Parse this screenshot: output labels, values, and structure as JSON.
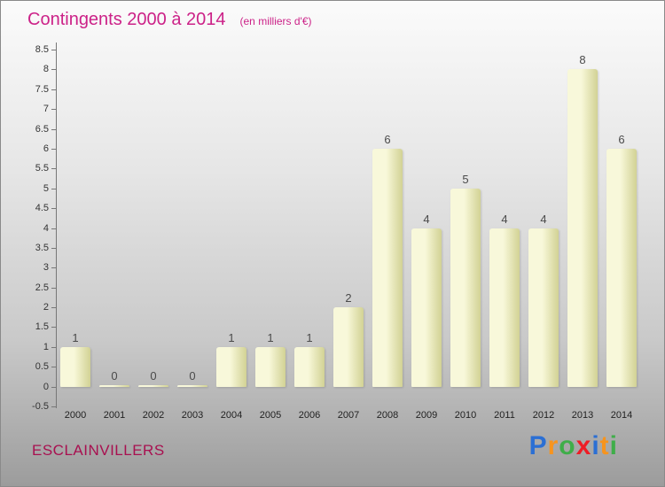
{
  "chart_data": {
    "type": "bar",
    "title": "Contingents 2000 à 2014",
    "subtitle": "(en milliers d'€)",
    "categories": [
      "2000",
      "2001",
      "2002",
      "2003",
      "2004",
      "2005",
      "2006",
      "2007",
      "2008",
      "2009",
      "2010",
      "2011",
      "2012",
      "2013",
      "2014"
    ],
    "values": [
      1,
      0,
      0,
      0,
      1,
      1,
      1,
      2,
      6,
      4,
      5,
      4,
      4,
      8,
      6
    ],
    "ylim": [
      -0.5,
      8.5
    ],
    "ytick_step": 0.5,
    "ytick_labels": [
      "8.5",
      "8",
      "7.5",
      "7",
      "6.5",
      "6",
      "5.5",
      "5",
      "4.5",
      "4",
      "3.5",
      "3",
      "2.5",
      "2",
      "1.5",
      "1",
      "0.5",
      "0",
      "-0.5"
    ],
    "grid": false,
    "legend": null,
    "bar_color_light": "#f8f8da",
    "bar_color_dark": "#d2d294"
  },
  "footer": {
    "place": "ESCLAINVILLERS",
    "logo_letters": [
      {
        "ch": "P",
        "color": "#2b6fd4"
      },
      {
        "ch": "r",
        "color": "#f7941d"
      },
      {
        "ch": "o",
        "color": "#3fae49"
      },
      {
        "ch": "x",
        "color": "#ee1c25"
      },
      {
        "ch": "i",
        "color": "#2b6fd4"
      },
      {
        "ch": "t",
        "color": "#f7941d"
      },
      {
        "ch": "i",
        "color": "#3fae49"
      }
    ]
  },
  "colors": {
    "title": "#cc2288",
    "subtitle": "#cc2288",
    "place": "#a81050",
    "value_label": "#4a4a4a",
    "axis": "#777777"
  }
}
